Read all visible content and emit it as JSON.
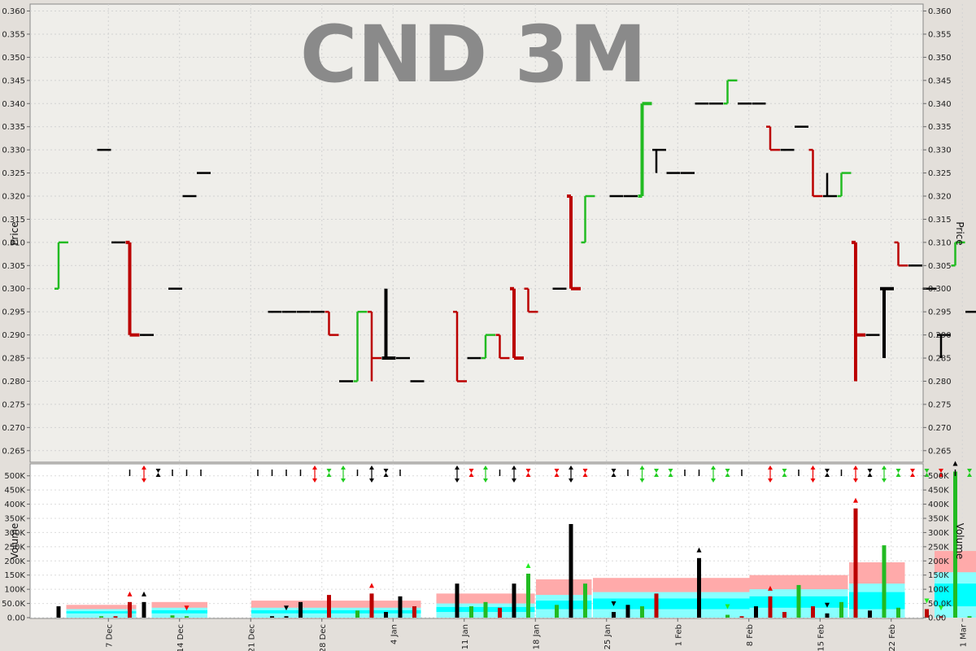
{
  "title": "CND 3M",
  "colors": {
    "up": "#22bb22",
    "down": "#bb0000",
    "flat": "#000000",
    "band_pink": "#ffaaaa",
    "band_lt": "#88ffff",
    "band_cy": "#00ffff"
  },
  "chart_data": [
    {
      "type": "ohlc",
      "ylabel": "Price",
      "ylim": [
        0.2625,
        0.3615
      ],
      "yticks": [
        "0.265",
        "0.270",
        "0.275",
        "0.280",
        "0.285",
        "0.290",
        "0.295",
        "0.300",
        "0.305",
        "0.310",
        "0.315",
        "0.320",
        "0.325",
        "0.330",
        "0.335",
        "0.340",
        "0.345",
        "0.350",
        "0.355",
        "0.360"
      ],
      "grid": true,
      "bars": [
        {
          "d": 0,
          "o": 0.3,
          "h": 0.31,
          "l": 0.3,
          "c": 0.31
        },
        {
          "d": 3,
          "o": 0.33,
          "h": 0.33,
          "l": 0.33,
          "c": 0.33
        },
        {
          "d": 4,
          "o": 0.31,
          "h": 0.31,
          "l": 0.31,
          "c": 0.31
        },
        {
          "d": 5,
          "o": 0.31,
          "h": 0.31,
          "l": 0.29,
          "c": 0.29
        },
        {
          "d": 6,
          "o": 0.29,
          "h": 0.29,
          "l": 0.29,
          "c": 0.29
        },
        {
          "d": 8,
          "o": 0.3,
          "h": 0.3,
          "l": 0.3,
          "c": 0.3
        },
        {
          "d": 9,
          "o": 0.32,
          "h": 0.32,
          "l": 0.32,
          "c": 0.32
        },
        {
          "d": 10,
          "o": 0.325,
          "h": 0.325,
          "l": 0.325,
          "c": 0.325
        },
        {
          "d": 15,
          "o": 0.295,
          "h": 0.295,
          "l": 0.295,
          "c": 0.295
        },
        {
          "d": 16,
          "o": 0.295,
          "h": 0.295,
          "l": 0.295,
          "c": 0.295
        },
        {
          "d": 17,
          "o": 0.295,
          "h": 0.295,
          "l": 0.295,
          "c": 0.295
        },
        {
          "d": 18,
          "o": 0.295,
          "h": 0.295,
          "l": 0.295,
          "c": 0.295
        },
        {
          "d": 19,
          "o": 0.295,
          "h": 0.295,
          "l": 0.29,
          "c": 0.29
        },
        {
          "d": 20,
          "o": 0.28,
          "h": 0.28,
          "l": 0.28,
          "c": 0.28
        },
        {
          "d": 21,
          "o": 0.28,
          "h": 0.295,
          "l": 0.28,
          "c": 0.295
        },
        {
          "d": 22,
          "o": 0.295,
          "h": 0.295,
          "l": 0.28,
          "c": 0.285
        },
        {
          "d": 23,
          "o": 0.285,
          "h": 0.3,
          "l": 0.285,
          "c": 0.285
        },
        {
          "d": 24,
          "o": 0.285,
          "h": 0.285,
          "l": 0.285,
          "c": 0.285
        },
        {
          "d": 25,
          "o": 0.28,
          "h": 0.28,
          "l": 0.28,
          "c": 0.28
        },
        {
          "d": 28,
          "o": 0.295,
          "h": 0.295,
          "l": 0.28,
          "c": 0.28
        },
        {
          "d": 29,
          "o": 0.285,
          "h": 0.285,
          "l": 0.285,
          "c": 0.285
        },
        {
          "d": 30,
          "o": 0.285,
          "h": 0.29,
          "l": 0.285,
          "c": 0.29
        },
        {
          "d": 31,
          "o": 0.29,
          "h": 0.29,
          "l": 0.285,
          "c": 0.285
        },
        {
          "d": 32,
          "o": 0.3,
          "h": 0.3,
          "l": 0.285,
          "c": 0.285
        },
        {
          "d": 33,
          "o": 0.3,
          "h": 0.3,
          "l": 0.295,
          "c": 0.295
        },
        {
          "d": 35,
          "o": 0.3,
          "h": 0.3,
          "l": 0.3,
          "c": 0.3
        },
        {
          "d": 36,
          "o": 0.32,
          "h": 0.32,
          "l": 0.3,
          "c": 0.3
        },
        {
          "d": 37,
          "o": 0.31,
          "h": 0.32,
          "l": 0.31,
          "c": 0.32
        },
        {
          "d": 39,
          "o": 0.32,
          "h": 0.32,
          "l": 0.32,
          "c": 0.32
        },
        {
          "d": 40,
          "o": 0.32,
          "h": 0.32,
          "l": 0.32,
          "c": 0.32
        },
        {
          "d": 41,
          "o": 0.32,
          "h": 0.34,
          "l": 0.32,
          "c": 0.34
        },
        {
          "d": 42,
          "o": 0.33,
          "h": 0.33,
          "l": 0.325,
          "c": 0.33
        },
        {
          "d": 43,
          "o": 0.325,
          "h": 0.325,
          "l": 0.325,
          "c": 0.325
        },
        {
          "d": 44,
          "o": 0.325,
          "h": 0.325,
          "l": 0.325,
          "c": 0.325
        },
        {
          "d": 45,
          "o": 0.34,
          "h": 0.34,
          "l": 0.34,
          "c": 0.34
        },
        {
          "d": 46,
          "o": 0.34,
          "h": 0.34,
          "l": 0.34,
          "c": 0.34
        },
        {
          "d": 47,
          "o": 0.34,
          "h": 0.345,
          "l": 0.34,
          "c": 0.345
        },
        {
          "d": 48,
          "o": 0.34,
          "h": 0.34,
          "l": 0.34,
          "c": 0.34
        },
        {
          "d": 49,
          "o": 0.34,
          "h": 0.34,
          "l": 0.34,
          "c": 0.34
        },
        {
          "d": 50,
          "o": 0.335,
          "h": 0.335,
          "l": 0.33,
          "c": 0.33
        },
        {
          "d": 51,
          "o": 0.33,
          "h": 0.33,
          "l": 0.33,
          "c": 0.33
        },
        {
          "d": 52,
          "o": 0.335,
          "h": 0.335,
          "l": 0.335,
          "c": 0.335
        },
        {
          "d": 53,
          "o": 0.33,
          "h": 0.33,
          "l": 0.32,
          "c": 0.32
        },
        {
          "d": 54,
          "o": 0.32,
          "h": 0.325,
          "l": 0.32,
          "c": 0.32
        },
        {
          "d": 55,
          "o": 0.32,
          "h": 0.325,
          "l": 0.32,
          "c": 0.325
        },
        {
          "d": 56,
          "o": 0.31,
          "h": 0.31,
          "l": 0.28,
          "c": 0.29
        },
        {
          "d": 57,
          "o": 0.29,
          "h": 0.29,
          "l": 0.29,
          "c": 0.29
        },
        {
          "d": 58,
          "o": 0.3,
          "h": 0.3,
          "l": 0.285,
          "c": 0.3
        },
        {
          "d": 59,
          "o": 0.31,
          "h": 0.31,
          "l": 0.305,
          "c": 0.305
        },
        {
          "d": 60,
          "o": 0.305,
          "h": 0.305,
          "l": 0.305,
          "c": 0.305
        },
        {
          "d": 61,
          "o": 0.3,
          "h": 0.3,
          "l": 0.3,
          "c": 0.3
        },
        {
          "d": 62,
          "o": 0.29,
          "h": 0.29,
          "l": 0.285,
          "c": 0.29
        },
        {
          "d": 63,
          "o": 0.305,
          "h": 0.31,
          "l": 0.305,
          "c": 0.31
        },
        {
          "d": 64,
          "o": 0.295,
          "h": 0.295,
          "l": 0.295,
          "c": 0.295
        }
      ]
    },
    {
      "type": "bar",
      "ylabel": "Volume",
      "ylim": [
        0,
        525000
      ],
      "yticks": [
        "0.00",
        "50.0K",
        "100K",
        "150K",
        "200K",
        "250K",
        "300K",
        "350K",
        "400K",
        "450K",
        "500K"
      ],
      "x_tick_labels": [
        "7 Dec",
        "14 Dec",
        "21 Dec",
        "28 Dec",
        "4 Jan",
        "11 Jan",
        "18 Jan",
        "25 Jan",
        "1 Feb",
        "8 Feb",
        "15 Feb",
        "22 Feb",
        "1 Mar"
      ],
      "values": [
        {
          "d": 0,
          "v": 40000,
          "c": "flat"
        },
        {
          "d": 3,
          "v": 5000,
          "c": "up"
        },
        {
          "d": 4,
          "v": 5000,
          "c": "down"
        },
        {
          "d": 5,
          "v": 55000,
          "c": "down",
          "m": "up-red"
        },
        {
          "d": 6,
          "v": 55000,
          "c": "flat",
          "m": "up-black"
        },
        {
          "d": 8,
          "v": 8000,
          "c": "up"
        },
        {
          "d": 9,
          "v": 5000,
          "c": "up",
          "m": "down-red"
        },
        {
          "d": 15,
          "v": 5000,
          "c": "flat"
        },
        {
          "d": 16,
          "v": 5000,
          "c": "flat",
          "m": "down-black"
        },
        {
          "d": 17,
          "v": 55000,
          "c": "flat"
        },
        {
          "d": 19,
          "v": 80000,
          "c": "down"
        },
        {
          "d": 21,
          "v": 25000,
          "c": "up"
        },
        {
          "d": 22,
          "v": 85000,
          "c": "down",
          "m": "up-red"
        },
        {
          "d": 23,
          "v": 20000,
          "c": "flat"
        },
        {
          "d": 24,
          "v": 75000,
          "c": "flat"
        },
        {
          "d": 25,
          "v": 40000,
          "c": "down"
        },
        {
          "d": 28,
          "v": 120000,
          "c": "flat"
        },
        {
          "d": 29,
          "v": 40000,
          "c": "up"
        },
        {
          "d": 30,
          "v": 55000,
          "c": "up"
        },
        {
          "d": 31,
          "v": 35000,
          "c": "down"
        },
        {
          "d": 32,
          "v": 120000,
          "c": "flat"
        },
        {
          "d": 33,
          "v": 155000,
          "c": "up",
          "m": "up-green"
        },
        {
          "d": 35,
          "v": 45000,
          "c": "up"
        },
        {
          "d": 36,
          "v": 330000,
          "c": "flat"
        },
        {
          "d": 37,
          "v": 120000,
          "c": "up"
        },
        {
          "d": 39,
          "v": 20000,
          "c": "flat",
          "m": "down-black"
        },
        {
          "d": 40,
          "v": 45000,
          "c": "flat"
        },
        {
          "d": 41,
          "v": 40000,
          "c": "up"
        },
        {
          "d": 42,
          "v": 85000,
          "c": "down"
        },
        {
          "d": 45,
          "v": 210000,
          "c": "flat",
          "m": "up-black"
        },
        {
          "d": 47,
          "v": 10000,
          "c": "up",
          "m": "down-green"
        },
        {
          "d": 48,
          "v": 5000,
          "c": "down"
        },
        {
          "d": 49,
          "v": 40000,
          "c": "flat"
        },
        {
          "d": 50,
          "v": 75000,
          "c": "down",
          "m": "up-red"
        },
        {
          "d": 51,
          "v": 20000,
          "c": "down"
        },
        {
          "d": 52,
          "v": 115000,
          "c": "up"
        },
        {
          "d": 53,
          "v": 40000,
          "c": "down"
        },
        {
          "d": 54,
          "v": 15000,
          "c": "flat",
          "m": "down-black"
        },
        {
          "d": 55,
          "v": 55000,
          "c": "up"
        },
        {
          "d": 56,
          "v": 385000,
          "c": "down",
          "m": "up-red"
        },
        {
          "d": 57,
          "v": 25000,
          "c": "flat"
        },
        {
          "d": 58,
          "v": 255000,
          "c": "up"
        },
        {
          "d": 59,
          "v": 35000,
          "c": "up"
        },
        {
          "d": 61,
          "v": 30000,
          "c": "down",
          "m": "down-green"
        },
        {
          "d": 62,
          "v": 5000,
          "c": "down",
          "m": "down-green"
        },
        {
          "d": 63,
          "v": 515000,
          "c": "up",
          "m": "up-black"
        },
        {
          "d": 64,
          "v": 5000,
          "c": "up"
        }
      ],
      "avg_bands": [
        {
          "d0": 1,
          "d1": 5,
          "b1": 15000,
          "b2": 30000,
          "top": 45000
        },
        {
          "d0": 7,
          "d1": 10,
          "b1": 15000,
          "b2": 35000,
          "top": 55000
        },
        {
          "d0": 14,
          "d1": 25,
          "b1": 15000,
          "b2": 35000,
          "top": 60000
        },
        {
          "d0": 27,
          "d1": 33,
          "b1": 20000,
          "b2": 50000,
          "top": 85000
        },
        {
          "d0": 34,
          "d1": 37,
          "b1": 30000,
          "b2": 80000,
          "top": 135000
        },
        {
          "d0": 38,
          "d1": 49,
          "b1": 30000,
          "b2": 90000,
          "top": 140000
        },
        {
          "d0": 49,
          "d1": 55,
          "b1": 35000,
          "b2": 100000,
          "top": 150000
        },
        {
          "d0": 56,
          "d1": 59,
          "b1": 30000,
          "b2": 120000,
          "top": 195000
        },
        {
          "d0": 62,
          "d1": 65,
          "b1": 40000,
          "b2": 160000,
          "top": 235000
        }
      ]
    }
  ],
  "signal_row": [
    {
      "d": 5,
      "k": "T"
    },
    {
      "d": 6,
      "k": "B",
      "c": "red"
    },
    {
      "d": 7,
      "k": "H"
    },
    {
      "d": 8,
      "k": "T"
    },
    {
      "d": 9,
      "k": "T"
    },
    {
      "d": 10,
      "k": "T"
    },
    {
      "d": 14,
      "k": "T"
    },
    {
      "d": 15,
      "k": "T"
    },
    {
      "d": 16,
      "k": "T"
    },
    {
      "d": 17,
      "k": "T"
    },
    {
      "d": 18,
      "k": "B",
      "c": "red"
    },
    {
      "d": 19,
      "k": "H",
      "c": "green"
    },
    {
      "d": 20,
      "k": "B",
      "c": "green"
    },
    {
      "d": 21,
      "k": "T"
    },
    {
      "d": 22,
      "k": "B",
      "c": "black"
    },
    {
      "d": 23,
      "k": "H"
    },
    {
      "d": 24,
      "k": "T"
    },
    {
      "d": 28,
      "k": "B",
      "c": "black"
    },
    {
      "d": 29,
      "k": "H",
      "c": "red"
    },
    {
      "d": 30,
      "k": "B",
      "c": "green"
    },
    {
      "d": 31,
      "k": "T"
    },
    {
      "d": 32,
      "k": "B",
      "c": "black"
    },
    {
      "d": 33,
      "k": "H",
      "c": "red"
    },
    {
      "d": 35,
      "k": "H",
      "c": "red"
    },
    {
      "d": 36,
      "k": "B",
      "c": "black"
    },
    {
      "d": 37,
      "k": "H",
      "c": "red"
    },
    {
      "d": 39,
      "k": "H"
    },
    {
      "d": 40,
      "k": "T"
    },
    {
      "d": 41,
      "k": "B",
      "c": "green"
    },
    {
      "d": 42,
      "k": "H",
      "c": "green"
    },
    {
      "d": 43,
      "k": "H",
      "c": "green"
    },
    {
      "d": 44,
      "k": "T"
    },
    {
      "d": 45,
      "k": "T"
    },
    {
      "d": 46,
      "k": "B",
      "c": "green"
    },
    {
      "d": 47,
      "k": "H",
      "c": "green"
    },
    {
      "d": 48,
      "k": "T"
    },
    {
      "d": 50,
      "k": "B",
      "c": "red"
    },
    {
      "d": 51,
      "k": "H",
      "c": "green"
    },
    {
      "d": 52,
      "k": "T"
    },
    {
      "d": 53,
      "k": "B",
      "c": "red"
    },
    {
      "d": 54,
      "k": "H"
    },
    {
      "d": 55,
      "k": "T"
    },
    {
      "d": 56,
      "k": "B",
      "c": "red"
    },
    {
      "d": 57,
      "k": "H"
    },
    {
      "d": 58,
      "k": "B",
      "c": "green"
    },
    {
      "d": 59,
      "k": "H",
      "c": "green"
    },
    {
      "d": 60,
      "k": "H",
      "c": "red"
    },
    {
      "d": 61,
      "k": "H",
      "c": "green"
    },
    {
      "d": 62,
      "k": "H",
      "c": "red"
    },
    {
      "d": 63,
      "k": "T"
    },
    {
      "d": 64,
      "k": "H",
      "c": "green"
    }
  ]
}
